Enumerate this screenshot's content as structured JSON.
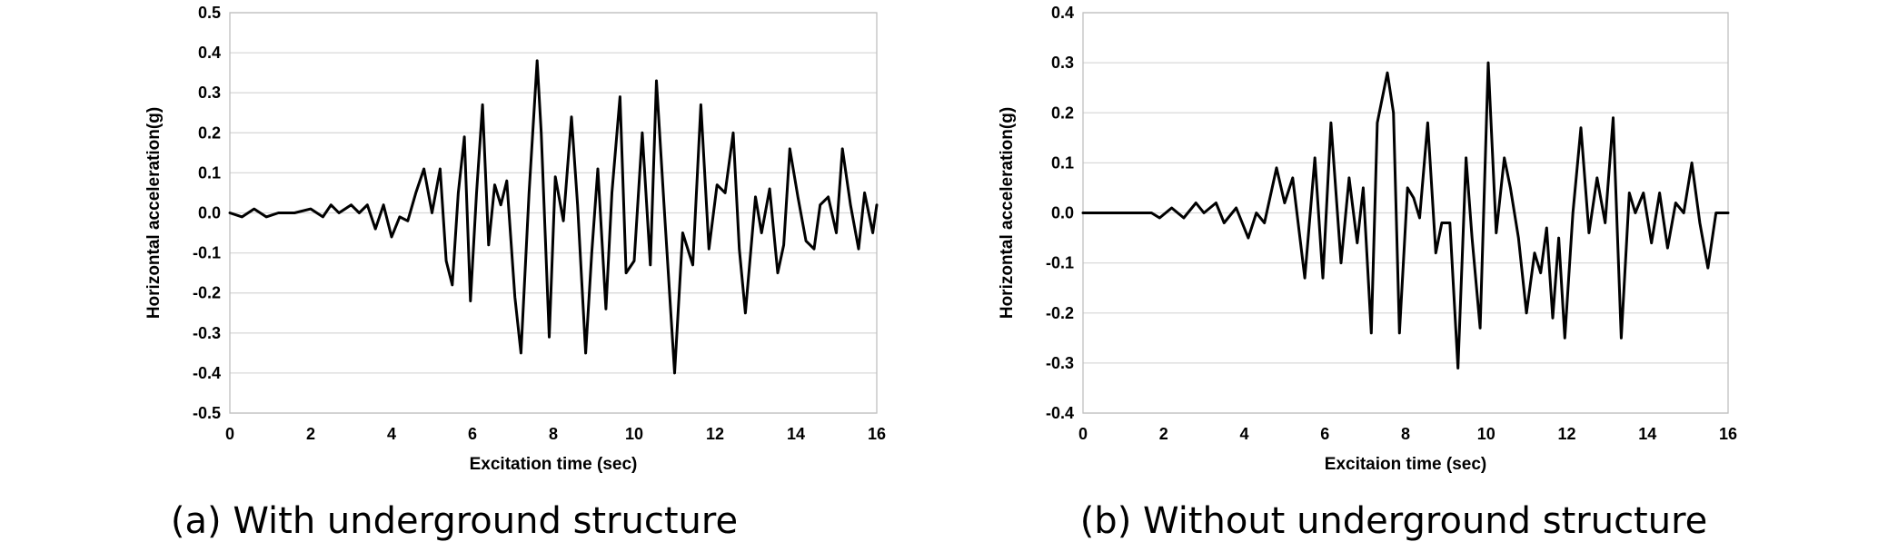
{
  "chart_data": [
    {
      "type": "line",
      "xlabel": "Excitation time (sec)",
      "ylabel": "Horizontal acceleration(g)",
      "caption": "(a) With underground structure",
      "xlim": [
        0,
        16
      ],
      "ylim": [
        -0.5,
        0.5
      ],
      "xticks": [
        0,
        2,
        4,
        6,
        8,
        10,
        12,
        14,
        16
      ],
      "yticks": [
        -0.5,
        -0.4,
        -0.3,
        -0.2,
        -0.1,
        0.0,
        0.1,
        0.2,
        0.3,
        0.4,
        0.5
      ],
      "ytick_labels": [
        "-0.5",
        "-0.4",
        "-0.3",
        "-0.2",
        "-0.1",
        "0.0",
        "0.1",
        "0.2",
        "0.3",
        "0.4",
        "0.5"
      ],
      "grid": "horizontal",
      "line_color": "#000000",
      "series": [
        {
          "x": [
            0,
            0.3,
            0.6,
            0.9,
            1.2,
            1.6,
            2.0,
            2.3,
            2.5,
            2.7,
            3.0,
            3.2,
            3.4,
            3.6,
            3.8,
            4.0,
            4.2,
            4.4,
            4.6,
            4.8,
            5.0,
            5.2,
            5.35,
            5.5,
            5.65,
            5.8,
            5.95,
            6.1,
            6.25,
            6.4,
            6.55,
            6.7,
            6.85,
            7.05,
            7.2,
            7.4,
            7.6,
            7.7,
            7.9,
            8.05,
            8.25,
            8.45,
            8.6,
            8.8,
            8.95,
            9.1,
            9.3,
            9.45,
            9.65,
            9.8,
            10.0,
            10.2,
            10.4,
            10.55,
            10.75,
            11.0,
            11.2,
            11.45,
            11.65,
            11.85,
            12.05,
            12.25,
            12.45,
            12.6,
            12.75,
            13.0,
            13.15,
            13.35,
            13.55,
            13.7,
            13.85,
            14.05,
            14.25,
            14.45,
            14.6,
            14.8,
            15.0,
            15.15,
            15.35,
            15.55,
            15.7,
            15.9,
            16.0
          ],
          "y": [
            0.0,
            -0.01,
            0.01,
            -0.01,
            0.0,
            0.0,
            0.01,
            -0.01,
            0.02,
            0.0,
            0.02,
            0.0,
            0.02,
            -0.04,
            0.02,
            -0.06,
            -0.01,
            -0.02,
            0.05,
            0.11,
            0.0,
            0.11,
            -0.12,
            -0.18,
            0.05,
            0.19,
            -0.22,
            0.05,
            0.27,
            -0.08,
            0.07,
            0.02,
            0.08,
            -0.21,
            -0.35,
            0.05,
            0.38,
            0.2,
            -0.31,
            0.09,
            -0.02,
            0.24,
            0.02,
            -0.35,
            -0.1,
            0.11,
            -0.24,
            0.05,
            0.29,
            -0.15,
            -0.12,
            0.2,
            -0.13,
            0.33,
            0.0,
            -0.4,
            -0.05,
            -0.13,
            0.27,
            -0.09,
            0.07,
            0.05,
            0.2,
            -0.09,
            -0.25,
            0.04,
            -0.05,
            0.06,
            -0.15,
            -0.08,
            0.16,
            0.04,
            -0.07,
            -0.09,
            0.02,
            0.04,
            -0.05,
            0.16,
            0.02,
            -0.09,
            0.05,
            -0.05,
            0.02
          ]
        }
      ]
    },
    {
      "type": "line",
      "xlabel": "Excitaion time (sec)",
      "ylabel": "Horizontal acceleration(g)",
      "caption": "(b) Without underground structure",
      "xlim": [
        0,
        16
      ],
      "ylim": [
        -0.4,
        0.4
      ],
      "xticks": [
        0,
        2,
        4,
        6,
        8,
        10,
        12,
        14,
        16
      ],
      "yticks": [
        -0.4,
        -0.3,
        -0.2,
        -0.1,
        0.0,
        0.1,
        0.2,
        0.3,
        0.4
      ],
      "ytick_labels": [
        "-0.4",
        "-0.3",
        "-0.2",
        "-0.1",
        "0.0",
        "0.1",
        "0.2",
        "0.3",
        "0.4"
      ],
      "grid": "horizontal",
      "line_color": "#000000",
      "series": [
        {
          "x": [
            0,
            1.0,
            1.7,
            1.9,
            2.2,
            2.5,
            2.8,
            3.0,
            3.3,
            3.5,
            3.8,
            4.1,
            4.3,
            4.5,
            4.8,
            5.0,
            5.2,
            5.5,
            5.75,
            5.95,
            6.15,
            6.4,
            6.6,
            6.8,
            6.95,
            7.15,
            7.3,
            7.55,
            7.7,
            7.85,
            8.05,
            8.2,
            8.35,
            8.55,
            8.75,
            8.9,
            9.1,
            9.3,
            9.5,
            9.65,
            9.85,
            10.05,
            10.25,
            10.45,
            10.6,
            10.8,
            11.0,
            11.2,
            11.35,
            11.5,
            11.65,
            11.8,
            11.95,
            12.15,
            12.35,
            12.55,
            12.75,
            12.95,
            13.15,
            13.35,
            13.55,
            13.7,
            13.9,
            14.1,
            14.3,
            14.5,
            14.7,
            14.9,
            15.1,
            15.3,
            15.5,
            15.7,
            15.85,
            16.0
          ],
          "y": [
            0.0,
            0.0,
            0.0,
            -0.01,
            0.01,
            -0.01,
            0.02,
            0.0,
            0.02,
            -0.02,
            0.01,
            -0.05,
            0.0,
            -0.02,
            0.09,
            0.02,
            0.07,
            -0.13,
            0.11,
            -0.13,
            0.18,
            -0.1,
            0.07,
            -0.06,
            0.05,
            -0.24,
            0.18,
            0.28,
            0.2,
            -0.24,
            0.05,
            0.03,
            -0.01,
            0.18,
            -0.08,
            -0.02,
            -0.02,
            -0.31,
            0.11,
            -0.05,
            -0.23,
            0.3,
            -0.04,
            0.11,
            0.05,
            -0.05,
            -0.2,
            -0.08,
            -0.12,
            -0.03,
            -0.21,
            -0.05,
            -0.25,
            0.0,
            0.17,
            -0.04,
            0.07,
            -0.02,
            0.19,
            -0.25,
            0.04,
            0.0,
            0.04,
            -0.06,
            0.04,
            -0.07,
            0.02,
            0.0,
            0.1,
            -0.02,
            -0.11,
            0.0,
            0.0,
            0.0
          ]
        }
      ]
    }
  ]
}
